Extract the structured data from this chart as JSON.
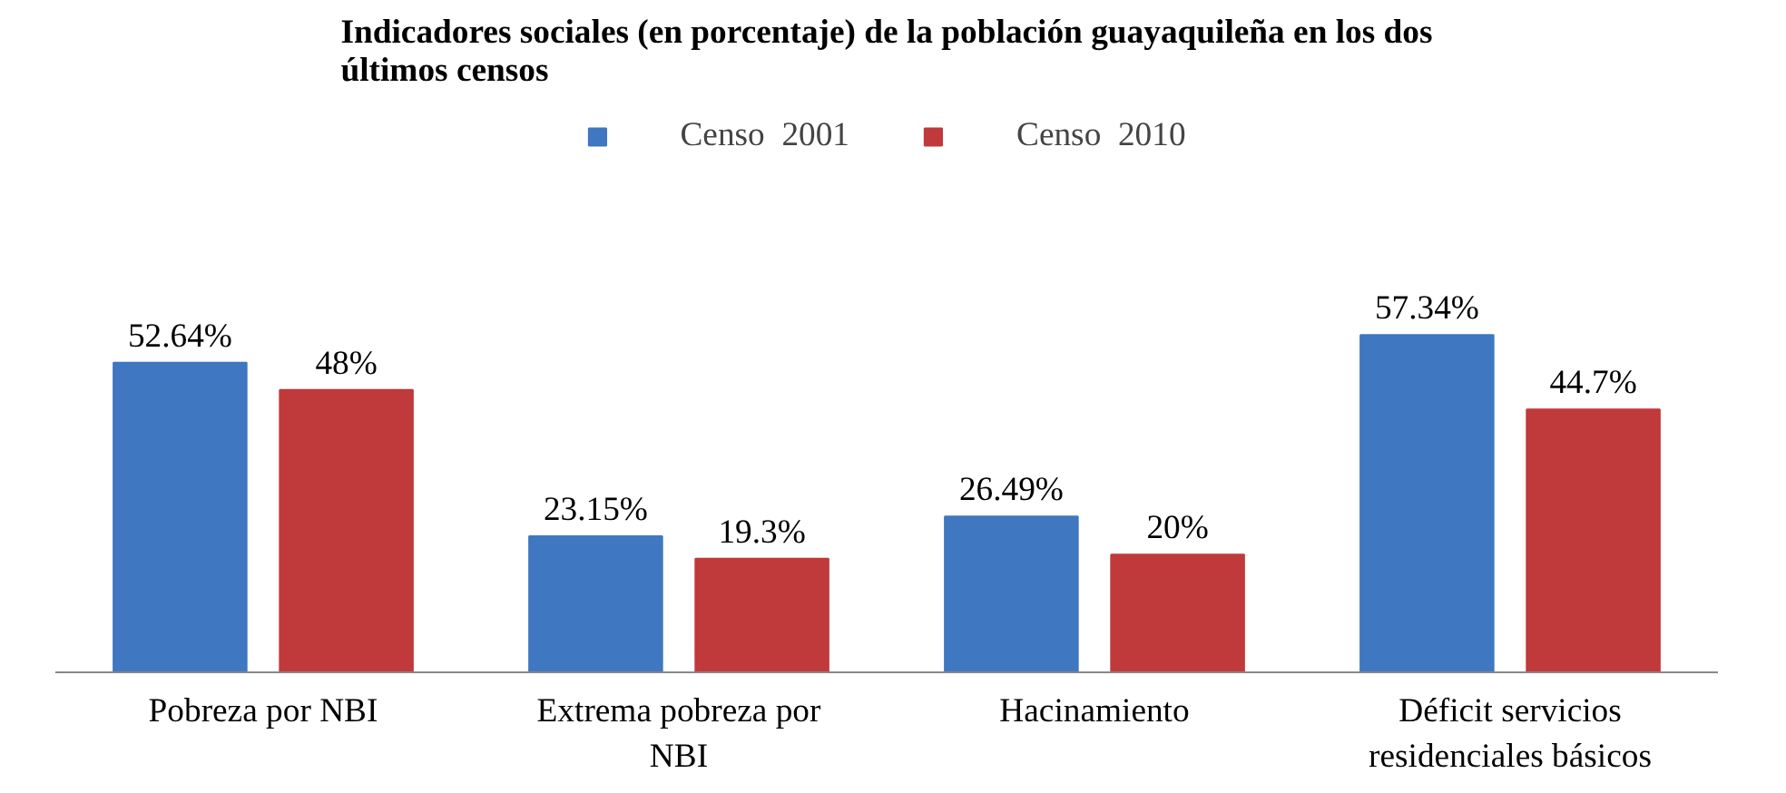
{
  "chart_data": {
    "type": "bar",
    "title": "Indicadores sociales (en porcentaje) de la población guayaquileña en los dos últimos censos",
    "categories": [
      "Pobreza por NBI",
      "Extrema pobreza por NBI",
      "Hacinamiento",
      "Déficit servicios residenciales básicos"
    ],
    "series": [
      {
        "name": "Censo  2001",
        "color": "#3f77c0",
        "values": [
          52.64,
          23.15,
          26.49,
          57.34
        ],
        "value_labels": [
          "52.64%",
          "23.15%",
          "26.49%",
          "57.34%"
        ]
      },
      {
        "name": "Censo  2010",
        "color": "#c0393b",
        "values": [
          48,
          19.3,
          20,
          44.7
        ],
        "value_labels": [
          "48%",
          "19.3%",
          "20%",
          "44.7%"
        ]
      }
    ],
    "legend": "top",
    "grid": false,
    "tick_labels": "x"
  }
}
